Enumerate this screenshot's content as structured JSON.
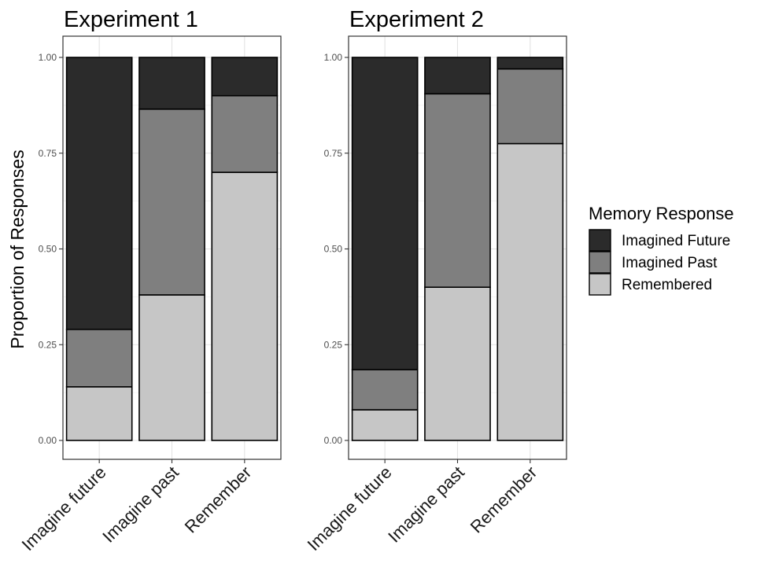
{
  "chart_data": {
    "type": "bar",
    "stacked": true,
    "proportional": true,
    "ylabel": "Proportion of Responses",
    "ylim": [
      0,
      1
    ],
    "y_ticks": [
      "0.00",
      "0.25",
      "0.50",
      "0.75",
      "1.00"
    ],
    "y_tick_values": [
      0,
      0.25,
      0.5,
      0.75,
      1
    ],
    "grid": true,
    "legend": {
      "title": "Memory Response",
      "position": "right",
      "items": [
        {
          "label": "Imagined Future",
          "color": "#2b2b2b"
        },
        {
          "label": "Imagined Past",
          "color": "#7f7f7f"
        },
        {
          "label": "Remembered",
          "color": "#c6c6c6"
        }
      ]
    },
    "panels": [
      {
        "title": "Experiment 1",
        "categories": [
          "Imagine future",
          "Imagine past",
          "Remember"
        ],
        "series": [
          {
            "name": "Remembered",
            "values": [
              0.14,
              0.38,
              0.7
            ]
          },
          {
            "name": "Imagined Past",
            "values": [
              0.15,
              0.485,
              0.2
            ]
          },
          {
            "name": "Imagined Future",
            "values": [
              0.71,
              0.135,
              0.1
            ]
          }
        ]
      },
      {
        "title": "Experiment 2",
        "categories": [
          "Imagine future",
          "Imagine past",
          "Remember"
        ],
        "series": [
          {
            "name": "Remembered",
            "values": [
              0.08,
              0.4,
              0.775
            ]
          },
          {
            "name": "Imagined Past",
            "values": [
              0.105,
              0.505,
              0.195
            ]
          },
          {
            "name": "Imagined Future",
            "values": [
              0.815,
              0.095,
              0.03
            ]
          }
        ]
      }
    ]
  }
}
